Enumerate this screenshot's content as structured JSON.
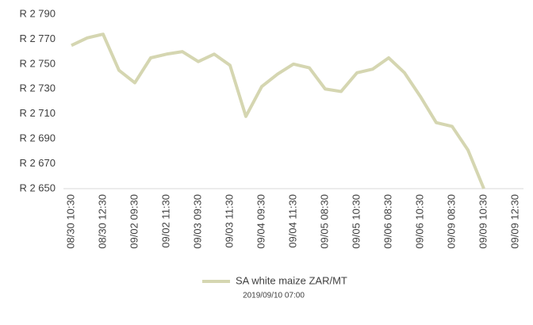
{
  "chart_data": {
    "type": "line",
    "categories": [
      "08/30 10:30",
      null,
      "08/30 12:30",
      null,
      "09/02 09:30",
      null,
      "09/02 11:30",
      null,
      "09/03 09:30",
      null,
      "09/03 11:30",
      null,
      "09/04 09:30",
      null,
      "09/04 11:30",
      null,
      "09/05 08:30",
      null,
      "09/05 10:30",
      null,
      "09/06 08:30",
      null,
      "09/06 10:30",
      null,
      "09/09 08:30",
      null,
      "09/09 10:30",
      null,
      "09/09 12:30"
    ],
    "series": [
      {
        "name": "SA white maize ZAR/MT",
        "color": "#d5d6b1",
        "values": [
          2765,
          2771,
          2774,
          2745,
          2735,
          2755,
          2758,
          2760,
          2752,
          2758,
          2749,
          2708,
          2732,
          2742,
          2750,
          2747,
          2730,
          2728,
          2743,
          2746,
          2755,
          2743,
          2724,
          2703,
          2700,
          2681,
          2650,
          null,
          null
        ]
      }
    ],
    "ylim": [
      2650,
      2790
    ],
    "yticks": [
      {
        "value": 2650,
        "label": "R 2 650"
      },
      {
        "value": 2670,
        "label": "R 2 670"
      },
      {
        "value": 2690,
        "label": "R 2 690"
      },
      {
        "value": 2710,
        "label": "R 2 710"
      },
      {
        "value": 2730,
        "label": "R 2 730"
      },
      {
        "value": 2750,
        "label": "R 2 750"
      },
      {
        "value": 2770,
        "label": "R 2 770"
      },
      {
        "value": 2790,
        "label": "R 2 790"
      }
    ],
    "grid": false,
    "legend": "bottom",
    "footnote": "2019/09/10 07:00"
  }
}
